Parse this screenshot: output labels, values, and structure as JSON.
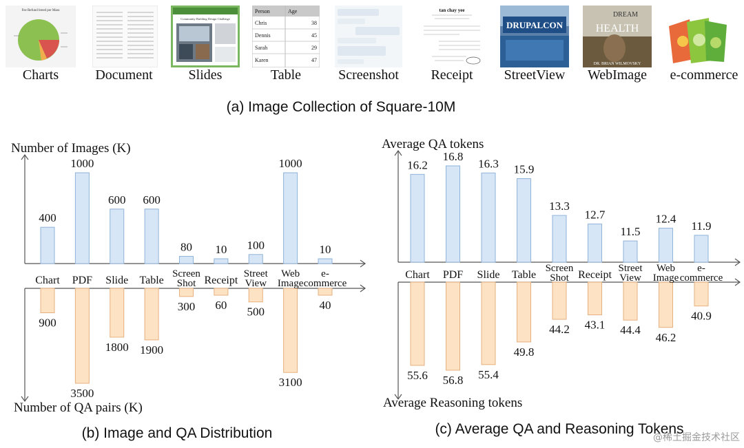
{
  "collection": {
    "caption": "(a) Image Collection of Square-10M",
    "thumbnails": [
      {
        "label": "Charts",
        "icon": "pie-chart-thumb",
        "title_text": "Fee Refund breed per Mass"
      },
      {
        "label": "Document",
        "icon": "document-thumb"
      },
      {
        "label": "Slides",
        "icon": "slides-thumb",
        "title_text": "Community Building Design Challenge"
      },
      {
        "label": "Table",
        "icon": "table-thumb",
        "headers": [
          "Person",
          "Age"
        ],
        "rows": [
          [
            "Chris",
            "38"
          ],
          [
            "Dennis",
            "45"
          ],
          [
            "Sarah",
            "29"
          ],
          [
            "Karen",
            "47"
          ]
        ]
      },
      {
        "label": "Screenshot",
        "icon": "chat-screenshot-thumb"
      },
      {
        "label": "Receipt",
        "icon": "receipt-thumb",
        "title_text": "tan chay yee"
      },
      {
        "label": "StreetView",
        "icon": "street-view-thumb",
        "sign_text": "DRUPALCON"
      },
      {
        "label": "WebImage",
        "icon": "book-cover-thumb",
        "cover_top": "DREAM",
        "cover_mid": "HEALTH",
        "cover_author": "DR. BRIAN WILMOVSKY"
      },
      {
        "label": "e-commerce",
        "icon": "product-bags-thumb"
      }
    ]
  },
  "colors": {
    "top_bar_fill": "#d6e6f6",
    "top_bar_stroke": "#8fb3d9",
    "bottom_bar_fill": "#fde2c4",
    "bottom_bar_stroke": "#e6b07f",
    "axis": "#555555"
  },
  "chart_data": [
    {
      "type": "bar",
      "caption": "(b) Image and QA Distribution",
      "categories": [
        "Chart",
        "PDF",
        "Slide",
        "Table",
        "Screen Shot",
        "Receipt",
        "Street View",
        "Web Image",
        "e-commerce"
      ],
      "series": [
        {
          "name": "Number of Images (K)",
          "direction": "up",
          "values": [
            400,
            1000,
            600,
            600,
            80,
            10,
            100,
            1000,
            10
          ]
        },
        {
          "name": "Number of QA pairs (K)",
          "direction": "down",
          "values": [
            900,
            3500,
            1800,
            1900,
            300,
            60,
            500,
            3100,
            40
          ]
        }
      ]
    },
    {
      "type": "bar",
      "caption": "(c) Average QA and Reasoning Tokens",
      "categories": [
        "Chart",
        "PDF",
        "Slide",
        "Table",
        "Screen Shot",
        "Receipt",
        "Street View",
        "Web Image",
        "e-commerce"
      ],
      "series": [
        {
          "name": "Average QA tokens",
          "direction": "up",
          "values": [
            16.2,
            16.8,
            16.3,
            15.9,
            13.3,
            12.7,
            11.5,
            12.4,
            11.9
          ]
        },
        {
          "name": "Average Reasoning tokens",
          "direction": "down",
          "values": [
            55.6,
            56.8,
            55.4,
            49.8,
            44.2,
            43.1,
            44.4,
            46.2,
            40.9
          ]
        }
      ]
    }
  ],
  "watermark": "@稀土掘金技术社区"
}
